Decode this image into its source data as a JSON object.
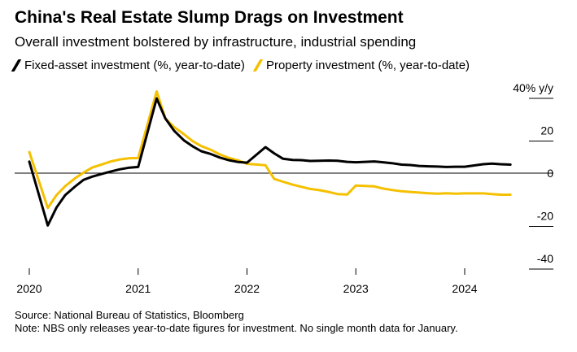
{
  "title": "China's Real Estate Slump Drags on Investment",
  "subtitle": "Overall investment bolstered by infrastructure, industrial spending",
  "colors": {
    "fixed_asset": "#000000",
    "property": "#f5c000",
    "zero_line": "#000000",
    "gridline": "#000000"
  },
  "footer": {
    "source": "Source: National Bureau of Statistics, Bloomberg",
    "note": "Note: NBS only releases year-to-date figures for investment. No single month data for January."
  },
  "chart_data": {
    "type": "line",
    "title": "China's Real Estate Slump Drags on Investment",
    "subtitle": "Overall investment bolstered by infrastructure, industrial spending",
    "xlabel": "",
    "ylabel": "40% y/y",
    "ylim": [
      -40,
      40
    ],
    "yticks": [
      {
        "value": 40,
        "label": "40% y/y"
      },
      {
        "value": 20,
        "label": "20"
      },
      {
        "value": 0,
        "label": "0"
      },
      {
        "value": -20,
        "label": "-20"
      },
      {
        "value": -40,
        "label": "-40"
      }
    ],
    "xlim": [
      2020.0,
      2024.6
    ],
    "xticks": [
      {
        "value": 2020.0,
        "label": "2020"
      },
      {
        "value": 2021.0,
        "label": "2021"
      },
      {
        "value": 2022.0,
        "label": "2022"
      },
      {
        "value": 2023.0,
        "label": "2023"
      },
      {
        "value": 2024.0,
        "label": "2024"
      }
    ],
    "series": [
      {
        "name": "Fixed-asset investment (%, year-to-date)",
        "color": "#000000",
        "x": [
          2020.0,
          2020.17,
          2020.25,
          2020.33,
          2020.42,
          2020.5,
          2020.58,
          2020.67,
          2020.75,
          2020.83,
          2020.92,
          2021.0,
          2021.17,
          2021.25,
          2021.33,
          2021.42,
          2021.5,
          2021.58,
          2021.67,
          2021.75,
          2021.83,
          2021.92,
          2022.0,
          2022.17,
          2022.25,
          2022.33,
          2022.42,
          2022.5,
          2022.58,
          2022.67,
          2022.75,
          2022.83,
          2022.92,
          2023.0,
          2023.17,
          2023.25,
          2023.33,
          2023.42,
          2023.5,
          2023.58,
          2023.67,
          2023.75,
          2023.83,
          2023.92,
          2024.0,
          2024.17,
          2024.25,
          2024.33,
          2024.42
        ],
        "values": [
          5.4,
          -24.5,
          -16.1,
          -10.3,
          -6.3,
          -3.1,
          -1.6,
          -0.3,
          0.8,
          1.8,
          2.6,
          2.9,
          35.0,
          25.6,
          19.9,
          15.4,
          12.6,
          10.3,
          8.9,
          7.3,
          6.1,
          5.2,
          4.9,
          12.2,
          9.3,
          6.8,
          6.2,
          6.1,
          5.7,
          5.8,
          5.9,
          5.8,
          5.3,
          5.1,
          5.5,
          5.1,
          4.7,
          4.0,
          3.8,
          3.4,
          3.2,
          3.1,
          2.9,
          3.0,
          3.0,
          4.2,
          4.5,
          4.2,
          4.0
        ]
      },
      {
        "name": "Property investment (%, year-to-date)",
        "color": "#f5c000",
        "x": [
          2020.0,
          2020.17,
          2020.25,
          2020.33,
          2020.42,
          2020.5,
          2020.58,
          2020.67,
          2020.75,
          2020.83,
          2020.92,
          2021.0,
          2021.17,
          2021.25,
          2021.33,
          2021.42,
          2021.5,
          2021.58,
          2021.67,
          2021.75,
          2021.83,
          2021.92,
          2022.0,
          2022.17,
          2022.25,
          2022.33,
          2022.42,
          2022.5,
          2022.58,
          2022.67,
          2022.75,
          2022.83,
          2022.92,
          2023.0,
          2023.17,
          2023.25,
          2023.33,
          2023.42,
          2023.5,
          2023.58,
          2023.67,
          2023.75,
          2023.83,
          2023.92,
          2024.0,
          2024.17,
          2024.25,
          2024.33,
          2024.42
        ],
        "values": [
          9.9,
          -16.3,
          -10.3,
          -6.1,
          -2.4,
          0.3,
          2.7,
          4.1,
          5.5,
          6.4,
          7.0,
          7.1,
          38.3,
          25.6,
          21.6,
          18.3,
          15.0,
          12.7,
          10.9,
          8.8,
          7.2,
          6.0,
          4.4,
          3.7,
          -2.7,
          -4.0,
          -5.4,
          -6.4,
          -7.4,
          -8.0,
          -8.8,
          -9.8,
          -10.0,
          -5.8,
          -6.2,
          -7.2,
          -7.9,
          -8.5,
          -8.8,
          -9.1,
          -9.4,
          -9.6,
          -9.4,
          -9.6,
          -9.5,
          -9.5,
          -9.8,
          -10.1,
          -10.1
        ]
      }
    ],
    "legend": "top-left"
  }
}
